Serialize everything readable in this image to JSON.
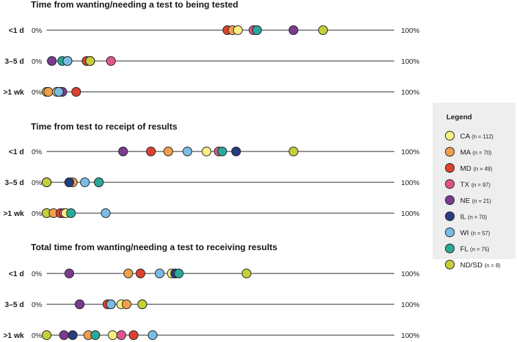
{
  "chart_data": {
    "type": "scatter",
    "axis_min_label": "0%",
    "axis_max_label": "100%",
    "xlim": [
      0,
      100
    ],
    "legend": {
      "title": "Legend",
      "placement": "right",
      "entries": [
        {
          "key": "CA",
          "label": "CA",
          "n": "(n = 112)",
          "color": "#f7ef7f"
        },
        {
          "key": "MA",
          "label": "MA",
          "n": "(n = 70)",
          "color": "#f0a04b"
        },
        {
          "key": "MD",
          "label": "MD",
          "n": "(n = 49)",
          "color": "#dd4131"
        },
        {
          "key": "TX",
          "label": "TX",
          "n": "(n = 97)",
          "color": "#e0568c"
        },
        {
          "key": "NE",
          "label": "NE",
          "n": "(n = 21)",
          "color": "#7b3b8f"
        },
        {
          "key": "IL",
          "label": "IL",
          "n": "(n = 70)",
          "color": "#263e80"
        },
        {
          "key": "WI",
          "label": "WI",
          "n": "(n = 57)",
          "color": "#7bbbe6"
        },
        {
          "key": "FL",
          "label": "FL",
          "n": "(n = 75)",
          "color": "#2aa89a"
        },
        {
          "key": "NDSD",
          "label": "ND/SD",
          "n": "(n = 8)",
          "color": "#c4cf3a"
        }
      ]
    },
    "panels": [
      {
        "title": "Time from wanting/needing a test to being tested",
        "rows": [
          {
            "label": "<1 d",
            "values": {
              "MD": 52,
              "MA": 53.5,
              "CA": 55,
              "TX": 59.5,
              "IL": 60.5,
              "FL": 60.5,
              "NE": 71,
              "NDSD": 79.5
            }
          },
          {
            "label": "3–5 d",
            "values": {
              "NE": 1.5,
              "FL": 4.5,
              "CA": 6,
              "WI": 6,
              "MD": 11.5,
              "MA": 12.5,
              "IL": 12.5,
              "NDSD": 12.5,
              "TX": 18.5
            }
          },
          {
            "label": ">1 wk",
            "values": {
              "NDSD": 0,
              "MA": 0.5,
              "IL": 3,
              "FL": 3,
              "TX": 4,
              "NE": 4.5,
              "CA": 3,
              "WI": 3.5,
              "MD": 8.5
            }
          }
        ]
      },
      {
        "title": "Time from test to receipt of results",
        "rows": [
          {
            "label": "<1 d",
            "values": {
              "NE": 22,
              "MD": 30,
              "MA": 35,
              "WI": 40.5,
              "CA": 46,
              "TX": 49.5,
              "FL": 50.5,
              "IL": 54.5,
              "NDSD": 71
            }
          },
          {
            "label": "3–5 d",
            "values": {
              "TX": 0,
              "NE": 0,
              "NDSD": 0,
              "CA": 6.5,
              "MA": 7.5,
              "IL": 6.5,
              "WI": 11,
              "MD": 15,
              "FL": 15
            }
          },
          {
            "label": ">1 wk",
            "values": {
              "NE": 0,
              "NDSD": 0,
              "MA": 2,
              "MD": 4,
              "TX": 5,
              "CA": 5.5,
              "FL": 7,
              "WI": 17
            }
          }
        ]
      },
      {
        "title": "Total time from wanting/needing a test to receiving results",
        "rows": [
          {
            "label": "<1 d",
            "values": {
              "NE": 6.5,
              "MA": 23.5,
              "MD": 27,
              "WI": 32.5,
              "CA": 36,
              "TX": 37,
              "IL": 37,
              "FL": 38,
              "NDSD": 57.5
            }
          },
          {
            "label": "3–5 d",
            "values": {
              "IL": 9.5,
              "NE": 9.5,
              "MD": 17.5,
              "TX": 18.5,
              "WI": 18.5,
              "CA": 21.5,
              "MA": 23,
              "FL": 27.5,
              "NDSD": 27.5
            }
          },
          {
            "label": ">1 wk",
            "values": {
              "NDSD": 0,
              "NE": 5,
              "IL": 7.5,
              "MA": 12,
              "FL": 14,
              "CA": 19,
              "TX": 21.5,
              "MD": 25,
              "WI": 30.5
            }
          }
        ]
      }
    ]
  }
}
